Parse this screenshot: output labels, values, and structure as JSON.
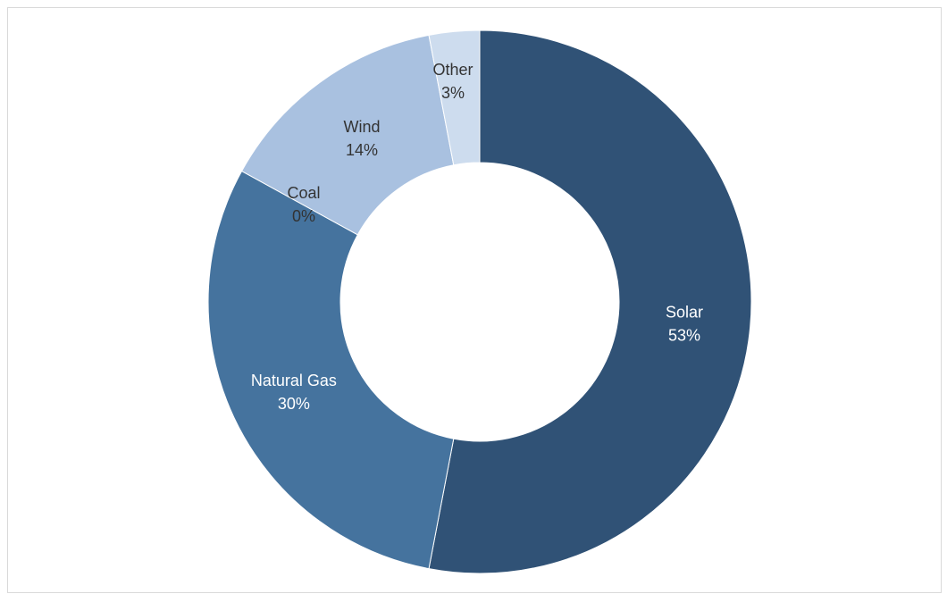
{
  "chart_data": {
    "type": "pie",
    "donut": true,
    "title": "",
    "legend": "none",
    "slices": [
      {
        "name": "Solar",
        "value": 53,
        "label": "53%",
        "color": "#305276",
        "text_color": "#ffffff"
      },
      {
        "name": "Natural Gas",
        "value": 30,
        "label": "30%",
        "color": "#45739e",
        "text_color": "#ffffff"
      },
      {
        "name": "Coal",
        "value": 0,
        "label": "0%",
        "color": "#5f8dba",
        "text_color": "#333333"
      },
      {
        "name": "Wind",
        "value": 14,
        "label": "14%",
        "color": "#a9c1e0",
        "text_color": "#333333"
      },
      {
        "name": "Other",
        "value": 3,
        "label": "3%",
        "color": "#cddcee",
        "text_color": "#333333"
      }
    ]
  }
}
